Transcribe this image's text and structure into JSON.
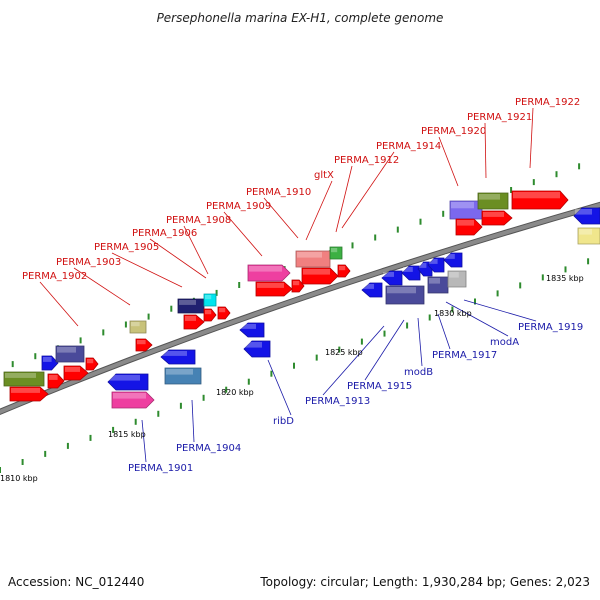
{
  "title": "Persephonella marina EX-H1, complete genome",
  "footer": {
    "accession": "Accession: NC_012440",
    "stats": "Topology: circular; Length: 1,930,284 bp; Genes: 2,023"
  },
  "colors": {
    "backbone": "#8a8a8a",
    "tick": "#2e8b2e",
    "top_label": "#d01010",
    "bottom_label": "#1a1aa8",
    "cds": "#ff0000",
    "gene_blue": "#1414e6",
    "gene_navy": "#202070",
    "gene_slate": "#4a4a9a",
    "gene_olive": "#6b8e23",
    "gene_pink": "#ee3fa0",
    "gene_salmon": "#f08080",
    "gene_cyan": "#00e5ee",
    "gene_steel": "#4682b4",
    "gene_khaki": "#c8c27a",
    "gene_lightslate": "#7b68ee",
    "gene_gray": "#b8b8b8",
    "gene_lightyellow": "#f0e68c",
    "gene_green": "#3cb043"
  },
  "ruler": [
    "1810 kbp",
    "1815 kbp",
    "1820 kbp",
    "1825 kbp",
    "1830 kbp",
    "1835 kbp"
  ],
  "top_labels": [
    "PERMA_1902",
    "PERMA_1903",
    "PERMA_1905",
    "PERMA_1906",
    "PERMA_1908",
    "PERMA_1909",
    "PERMA_1910",
    "gltX",
    "PERMA_1912",
    "PERMA_1914",
    "PERMA_1920",
    "PERMA_1921",
    "PERMA_1922"
  ],
  "bottom_labels": [
    "PERMA_1901",
    "PERMA_1904",
    "ribD",
    "PERMA_1913",
    "PERMA_1915",
    "modB",
    "PERMA_1917",
    "modA",
    "PERMA_1919"
  ]
}
